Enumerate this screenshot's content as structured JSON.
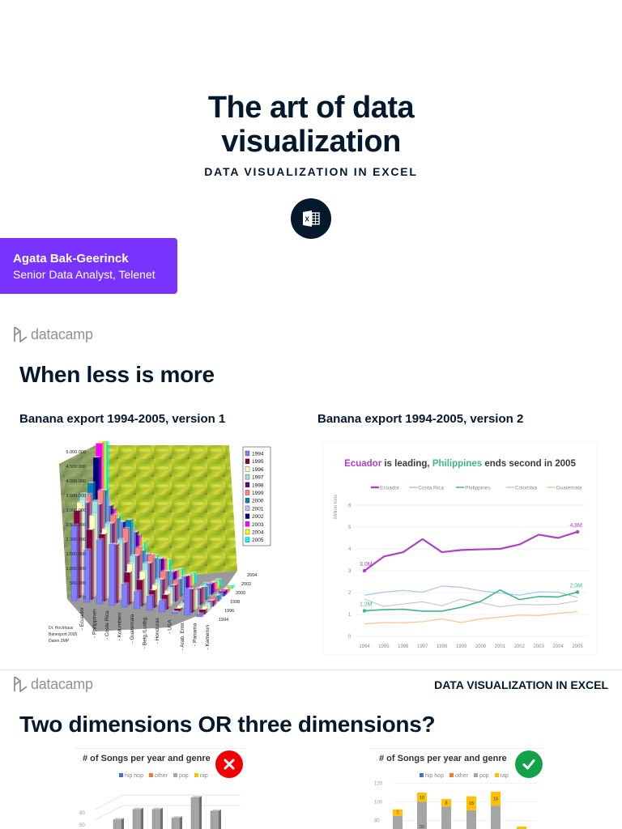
{
  "title_slide": {
    "title_line1": "The art of data",
    "title_line2": "visualization",
    "subtitle": "DATA VISUALIZATION IN EXCEL",
    "icon": "excel-icon",
    "author_name": "Agata Bak-Geerinck",
    "author_role": "Senior Data Analyst, Telenet"
  },
  "brand": {
    "logo_text": "datacamp",
    "accent": "#7933ff",
    "navy": "#05192d"
  },
  "slide2": {
    "heading": "When less is more",
    "left_caption": "Banana export 1994-2005, version 1",
    "right_caption": "Banana export 1994-2005, version 2"
  },
  "slide3": {
    "header_right": "DATA VISUALIZATION IN EXCEL",
    "heading": "Two dimensions OR three dimensions?",
    "left_panel": {
      "title": "# of Songs per year and genre",
      "mark": "x-mark",
      "mark_color": "#f00000"
    },
    "right_panel": {
      "title": "# of Songs per year and genre",
      "mark": "check-mark",
      "mark_color": "#12a34a"
    },
    "legend": [
      {
        "label": "hip hop",
        "color": "#4472c4"
      },
      {
        "label": "other",
        "color": "#ed7d31"
      },
      {
        "label": "pop",
        "color": "#a5a5a5"
      },
      {
        "label": "rap",
        "color": "#ffc000"
      }
    ]
  },
  "chart_data": [
    {
      "type": "bar",
      "title": "Banana export 1994-2005, version 1 (3D)",
      "ylabel": "",
      "yticks": [
        "0",
        "500.000",
        "1.000.000",
        "1.500.000",
        "2.000.000",
        "2.500.000",
        "3.000.000",
        "3.500.000",
        "4.000.000",
        "4.500.000",
        "5.000.000"
      ],
      "ylim": [
        0,
        5000000
      ],
      "categories": [
        "Ecuador",
        "Philippinen",
        "Costa Rica",
        "Kolumbien",
        "Guatemala",
        "Belg./Luxbg.",
        "Honduras",
        "USA",
        "Arab. Emir.",
        "Panama",
        "Kamerun"
      ],
      "depth_ticks": [
        "1994",
        "1996",
        "1998",
        "2000",
        "2002",
        "2004"
      ],
      "legend": [
        "1994",
        "1995",
        "1996",
        "1997",
        "1998",
        "1999",
        "2000",
        "2001",
        "2002",
        "2003",
        "2004",
        "2005"
      ],
      "legend_colors": [
        "#8080ff",
        "#800040",
        "#ffffc0",
        "#a0e0e0",
        "#600080",
        "#ff8080",
        "#0080c0",
        "#c0c0ff",
        "#000080",
        "#ff00ff",
        "#ffff00",
        "#00ffff"
      ],
      "source_note": [
        "Dr. Hochhaus",
        "Banexport 2005",
        "Daten ZMP"
      ]
    },
    {
      "type": "line",
      "title_parts": [
        {
          "text": "Ecuador",
          "color": "#b03fc9"
        },
        {
          "text": " is leading,  ",
          "color": "#3a3a3a"
        },
        {
          "text": "Philippines",
          "color": "#3fb58a"
        },
        {
          "text": " ends second in 2005",
          "color": "#3a3a3a"
        }
      ],
      "ylabel": "Million tons",
      "ylim": [
        0,
        6
      ],
      "yticks": [
        0,
        1,
        2,
        3,
        4,
        5,
        6
      ],
      "x": [
        "1994",
        "1995",
        "1996",
        "1997",
        "1998",
        "1999",
        "2000",
        "2001",
        "2002",
        "2003",
        "2004",
        "2005"
      ],
      "series": [
        {
          "name": "Ecuador",
          "color": "#b03fc9",
          "values": [
            3.0,
            3.65,
            3.85,
            4.45,
            3.85,
            3.95,
            3.98,
            4.0,
            4.2,
            4.65,
            4.5,
            4.78
          ]
        },
        {
          "name": "Costa Rica",
          "color": "#a9c4f0",
          "values": [
            1.88,
            2.02,
            2.1,
            2.02,
            2.3,
            2.24,
            2.08,
            1.98,
            1.88,
            2.04,
            2.02,
            1.78
          ]
        },
        {
          "name": "Philippines",
          "color": "#3fb58a",
          "values": [
            1.17,
            1.22,
            1.24,
            1.15,
            1.15,
            1.33,
            1.6,
            2.12,
            1.68,
            1.82,
            1.8,
            2.02
          ]
        },
        {
          "name": "Colombia",
          "color": "#c8c8c8",
          "values": [
            1.7,
            1.37,
            1.48,
            1.58,
            1.4,
            1.7,
            1.55,
            1.35,
            1.46,
            1.44,
            1.47,
            1.62
          ]
        },
        {
          "name": "Guatemala",
          "color": "#f5c78f",
          "values": [
            0.57,
            0.63,
            0.62,
            0.67,
            0.8,
            0.63,
            0.8,
            0.88,
            0.97,
            0.95,
            1.05,
            1.13
          ]
        }
      ],
      "annotations": [
        {
          "label": "3.0M",
          "x": "1994",
          "series": "Ecuador"
        },
        {
          "label": "4,8M",
          "x": "2005",
          "series": "Ecuador"
        },
        {
          "label": "1,2M",
          "x": "1994",
          "series": "Philippines"
        },
        {
          "label": "2,0M",
          "x": "2005",
          "series": "Philippines"
        }
      ],
      "legend_position": "top"
    },
    {
      "type": "bar",
      "title": "# of Songs per year and genre (3D, partially visible)",
      "yticks": [
        "50",
        "60"
      ],
      "series": [
        {
          "name": "pop",
          "values": [
            50,
            56,
            56,
            51,
            63,
            55
          ]
        }
      ],
      "legend": [
        "hip hop",
        "other",
        "pop",
        "rap"
      ]
    },
    {
      "type": "bar",
      "title": "# of Songs per year and genre (stacked, partially visible)",
      "yticks": [
        "80",
        "100",
        "120"
      ],
      "ylim": [
        0,
        120
      ],
      "series": [
        {
          "name": "pop",
          "values": [
            85,
            100,
            95,
            91,
            96,
            null
          ]
        },
        {
          "name": "rap",
          "values": [
            7,
            10,
            8,
            15,
            15,
            null
          ],
          "labels": [
            "7",
            "10",
            "8",
            "15",
            "15",
            "?"
          ]
        }
      ],
      "inner_labels": [
        "90"
      ],
      "legend": [
        "hip hop",
        "other",
        "pop",
        "rap"
      ]
    }
  ]
}
